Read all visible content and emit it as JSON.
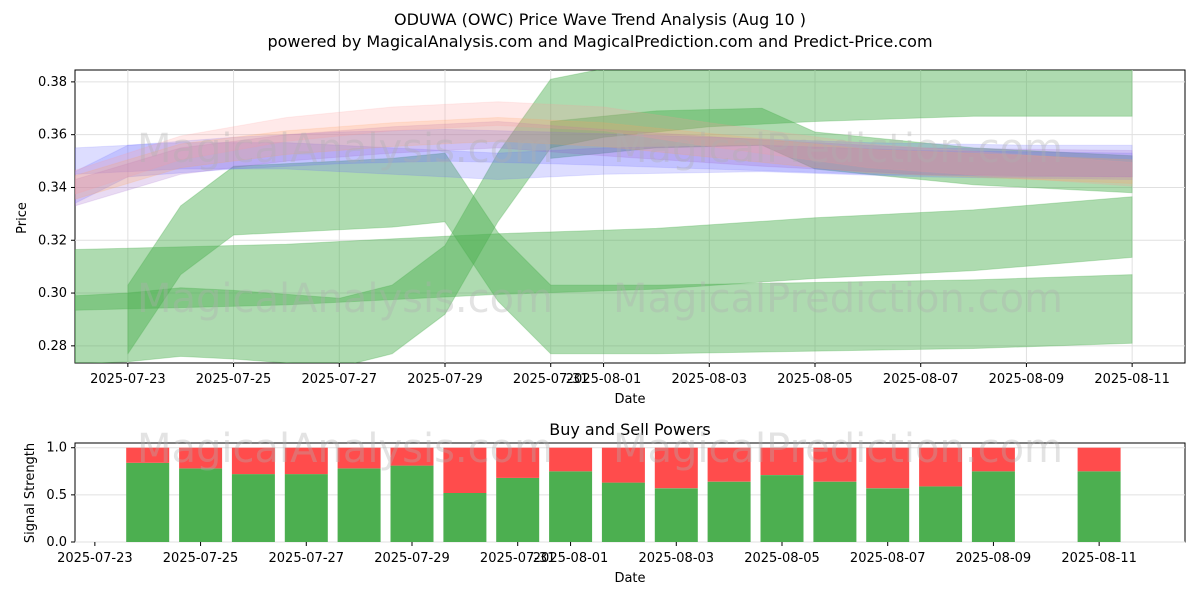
{
  "header": {
    "title": "ODUWA (OWC) Price Wave Trend Analysis (Aug 10 )",
    "subtitle": "powered by MagicalAnalysis.com and MagicalPrediction.com and Predict-Price.com"
  },
  "watermarks": {
    "left": "MagicalAnalysis.com",
    "right": "MagicalPrediction.com"
  },
  "colors": {
    "green": "#4caf50",
    "red": "#ff4c4c",
    "blue": "#6666ff",
    "purple": "#9a5cc8",
    "orange": "#ffa550",
    "pink": "#ff9999"
  },
  "chart_data": [
    {
      "type": "area",
      "title": "",
      "xlabel": "Date",
      "ylabel": "Price",
      "x_ticks": [
        "2025-07-23",
        "2025-07-25",
        "2025-07-27",
        "2025-07-29",
        "2025-07-31",
        "2025-08-01",
        "2025-08-03",
        "2025-08-05",
        "2025-08-07",
        "2025-08-09",
        "2025-08-11"
      ],
      "y_ticks": [
        "0.28",
        "0.30",
        "0.32",
        "0.34",
        "0.36",
        "0.38"
      ],
      "xlim": [
        "2025-07-22",
        "2025-08-12"
      ],
      "ylim": [
        0.2735,
        0.3845
      ],
      "grid": true,
      "series": [
        {
          "color": "green",
          "points": [
            [
              "2025-07-22",
              0.305
            ],
            [
              "2025-07-24",
              0.306
            ],
            [
              "2025-07-26",
              0.307
            ],
            [
              "2025-07-28",
              0.309
            ],
            [
              "2025-07-30",
              0.311
            ],
            [
              "2025-08-02",
              0.313
            ],
            [
              "2025-08-05",
              0.317
            ],
            [
              "2025-08-08",
              0.32
            ],
            [
              "2025-08-11",
              0.325
            ]
          ],
          "width": 0.023
        },
        {
          "color": "green",
          "points": [
            [
              "2025-07-22",
              0.286
            ],
            [
              "2025-07-23",
              0.287
            ],
            [
              "2025-07-24",
              0.289
            ],
            [
              "2025-07-25",
              0.288
            ],
            [
              "2025-07-27",
              0.285
            ],
            [
              "2025-07-28",
              0.29
            ],
            [
              "2025-07-29",
              0.305
            ],
            [
              "2025-07-30",
              0.34
            ],
            [
              "2025-07-31",
              0.368
            ],
            [
              "2025-08-01",
              0.372
            ],
            [
              "2025-08-03",
              0.376
            ],
            [
              "2025-08-05",
              0.378
            ],
            [
              "2025-08-08",
              0.38
            ],
            [
              "2025-08-11",
              0.38
            ]
          ],
          "width": 0.026
        },
        {
          "color": "green",
          "points": [
            [
              "2025-07-23",
              0.29
            ],
            [
              "2025-07-24",
              0.32
            ],
            [
              "2025-07-25",
              0.335
            ],
            [
              "2025-07-27",
              0.337
            ],
            [
              "2025-07-28",
              0.338
            ],
            [
              "2025-07-29",
              0.34
            ],
            [
              "2025-07-30",
              0.31
            ],
            [
              "2025-07-31",
              0.29
            ],
            [
              "2025-08-02",
              0.29
            ],
            [
              "2025-08-05",
              0.291
            ],
            [
              "2025-08-08",
              0.292
            ],
            [
              "2025-08-11",
              0.294
            ]
          ],
          "width": 0.026
        },
        {
          "color": "green",
          "points": [
            [
              "2025-07-31",
              0.358
            ],
            [
              "2025-08-02",
              0.362
            ],
            [
              "2025-08-04",
              0.363
            ],
            [
              "2025-08-05",
              0.354
            ],
            [
              "2025-08-08",
              0.348
            ],
            [
              "2025-08-11",
              0.345
            ]
          ],
          "width": 0.014
        },
        {
          "color": "blue",
          "points": [
            [
              "2025-07-22",
              0.34
            ],
            [
              "2025-07-23",
              0.35
            ],
            [
              "2025-07-25",
              0.353
            ],
            [
              "2025-07-27",
              0.355
            ],
            [
              "2025-07-29",
              0.356
            ],
            [
              "2025-07-31",
              0.355
            ],
            [
              "2025-08-03",
              0.353
            ],
            [
              "2025-08-06",
              0.351
            ],
            [
              "2025-08-09",
              0.35
            ],
            [
              "2025-08-11",
              0.35
            ]
          ],
          "width": 0.012
        },
        {
          "color": "blue",
          "points": [
            [
              "2025-07-22",
              0.35
            ],
            [
              "2025-07-24",
              0.352
            ],
            [
              "2025-07-26",
              0.352
            ],
            [
              "2025-07-28",
              0.35
            ],
            [
              "2025-07-30",
              0.348
            ],
            [
              "2025-08-01",
              0.35
            ],
            [
              "2025-08-04",
              0.351
            ],
            [
              "2025-08-07",
              0.349
            ],
            [
              "2025-08-11",
              0.348
            ]
          ],
          "width": 0.01
        },
        {
          "color": "purple",
          "points": [
            [
              "2025-07-22",
              0.338
            ],
            [
              "2025-07-24",
              0.35
            ],
            [
              "2025-07-26",
              0.355
            ],
            [
              "2025-07-28",
              0.358
            ],
            [
              "2025-07-30",
              0.36
            ],
            [
              "2025-08-01",
              0.357
            ],
            [
              "2025-08-04",
              0.353
            ],
            [
              "2025-08-07",
              0.35
            ],
            [
              "2025-08-11",
              0.349
            ]
          ],
          "width": 0.01
        },
        {
          "color": "orange",
          "points": [
            [
              "2025-07-22",
              0.34
            ],
            [
              "2025-07-24",
              0.352
            ],
            [
              "2025-07-26",
              0.357
            ],
            [
              "2025-07-28",
              0.36
            ],
            [
              "2025-07-30",
              0.362
            ],
            [
              "2025-08-01",
              0.36
            ],
            [
              "2025-08-03",
              0.356
            ],
            [
              "2025-08-06",
              0.35
            ],
            [
              "2025-08-11",
              0.346
            ]
          ],
          "width": 0.009
        },
        {
          "color": "pink",
          "points": [
            [
              "2025-07-22",
              0.342
            ],
            [
              "2025-07-24",
              0.355
            ],
            [
              "2025-07-26",
              0.362
            ],
            [
              "2025-07-28",
              0.366
            ],
            [
              "2025-07-30",
              0.368
            ],
            [
              "2025-08-01",
              0.366
            ],
            [
              "2025-08-03",
              0.36
            ],
            [
              "2025-08-06",
              0.352
            ],
            [
              "2025-08-11",
              0.345
            ]
          ],
          "width": 0.009
        }
      ]
    },
    {
      "type": "bar",
      "title": "Buy and Sell Powers",
      "xlabel": "Date",
      "ylabel": "Signal Strength",
      "x_ticks": [
        "2025-07-23",
        "2025-07-25",
        "2025-07-27",
        "2025-07-29",
        "2025-07-31",
        "2025-08-01",
        "2025-08-03",
        "2025-08-05",
        "2025-08-07",
        "2025-08-09",
        "2025-08-11"
      ],
      "y_ticks": [
        "0.0",
        "0.5",
        "1.0"
      ],
      "ylim": [
        0,
        1.05
      ],
      "stacked": true,
      "categories": [
        "2025-07-24",
        "2025-07-25",
        "2025-07-26",
        "2025-07-27",
        "2025-07-28",
        "2025-07-29",
        "2025-07-30",
        "2025-07-31",
        "2025-08-01",
        "2025-08-02",
        "2025-08-03",
        "2025-08-04",
        "2025-08-05",
        "2025-08-06",
        "2025-08-07",
        "2025-08-08",
        "2025-08-09",
        "2025-08-11"
      ],
      "series": [
        {
          "color": "green",
          "values": [
            0.84,
            0.78,
            0.72,
            0.72,
            0.78,
            0.81,
            0.52,
            0.68,
            0.75,
            0.63,
            0.57,
            0.64,
            0.71,
            0.64,
            0.57,
            0.59,
            0.75,
            0.75
          ]
        },
        {
          "color": "red",
          "values": [
            0.16,
            0.22,
            0.28,
            0.28,
            0.22,
            0.19,
            0.48,
            0.32,
            0.25,
            0.37,
            0.43,
            0.36,
            0.29,
            0.36,
            0.43,
            0.41,
            0.25,
            0.25
          ]
        }
      ]
    }
  ]
}
